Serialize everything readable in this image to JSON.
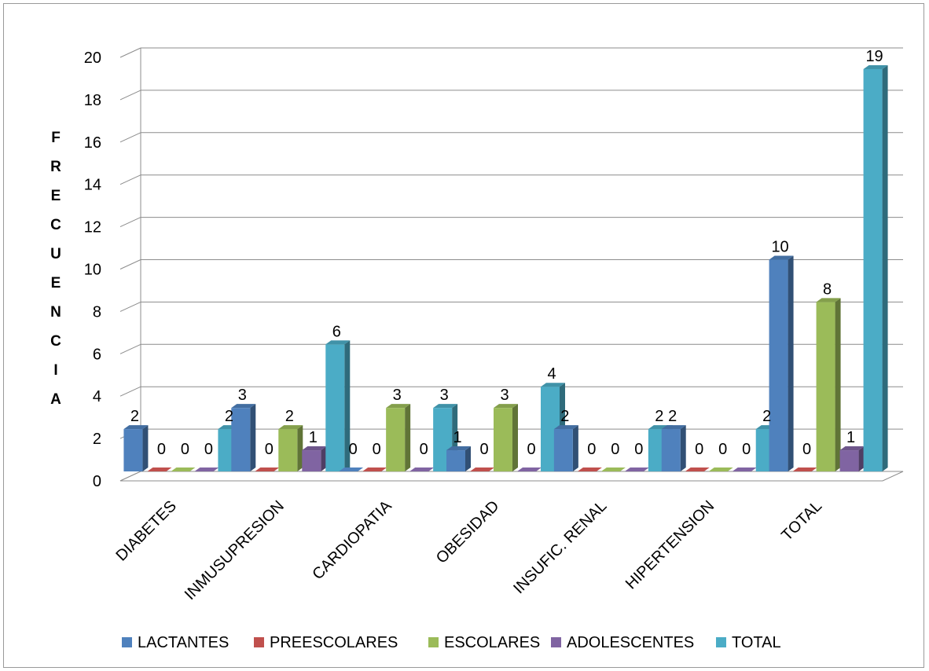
{
  "chart_data": {
    "type": "bar",
    "title": "",
    "xlabel": "",
    "ylabel": "FRECUENCIA",
    "ylim": [
      0,
      20
    ],
    "yticks": [
      0,
      2,
      4,
      6,
      8,
      10,
      12,
      14,
      16,
      18,
      20
    ],
    "grid": true,
    "legend_position": "bottom",
    "categories": [
      "DIABETES",
      "INMUSUPRESION",
      "CARDIOPATIA",
      "OBESIDAD",
      "INSUFIC. RENAL",
      "HIPERTENSION",
      "TOTAL"
    ],
    "series": [
      {
        "name": "LACTANTES",
        "color": "#4F81BD",
        "values": [
          2,
          3,
          0,
          1,
          2,
          2,
          10
        ]
      },
      {
        "name": "PREESCOLARES",
        "color": "#C0504D",
        "values": [
          0,
          0,
          0,
          0,
          0,
          0,
          0
        ]
      },
      {
        "name": "ESCOLARES",
        "color": "#9BBB59",
        "values": [
          0,
          2,
          3,
          3,
          0,
          0,
          8
        ]
      },
      {
        "name": "ADOLESCENTES",
        "color": "#8064A2",
        "values": [
          0,
          1,
          0,
          0,
          0,
          0,
          1
        ]
      },
      {
        "name": "TOTAL",
        "color": "#4BACC6",
        "values": [
          2,
          6,
          3,
          4,
          2,
          2,
          19
        ]
      }
    ],
    "data_labels": [
      [
        "2",
        "3",
        "0",
        "1",
        "2",
        "2",
        "10"
      ],
      [
        "0",
        "0",
        "0",
        "0",
        "0",
        "0",
        "0"
      ],
      [
        "0",
        "2",
        "3",
        "3",
        "0",
        "0",
        "8"
      ],
      [
        "0",
        "1",
        "0",
        "0",
        "0",
        "0",
        "1"
      ],
      [
        "2",
        "6",
        "3",
        "4",
        "2",
        "2",
        "19"
      ]
    ]
  }
}
